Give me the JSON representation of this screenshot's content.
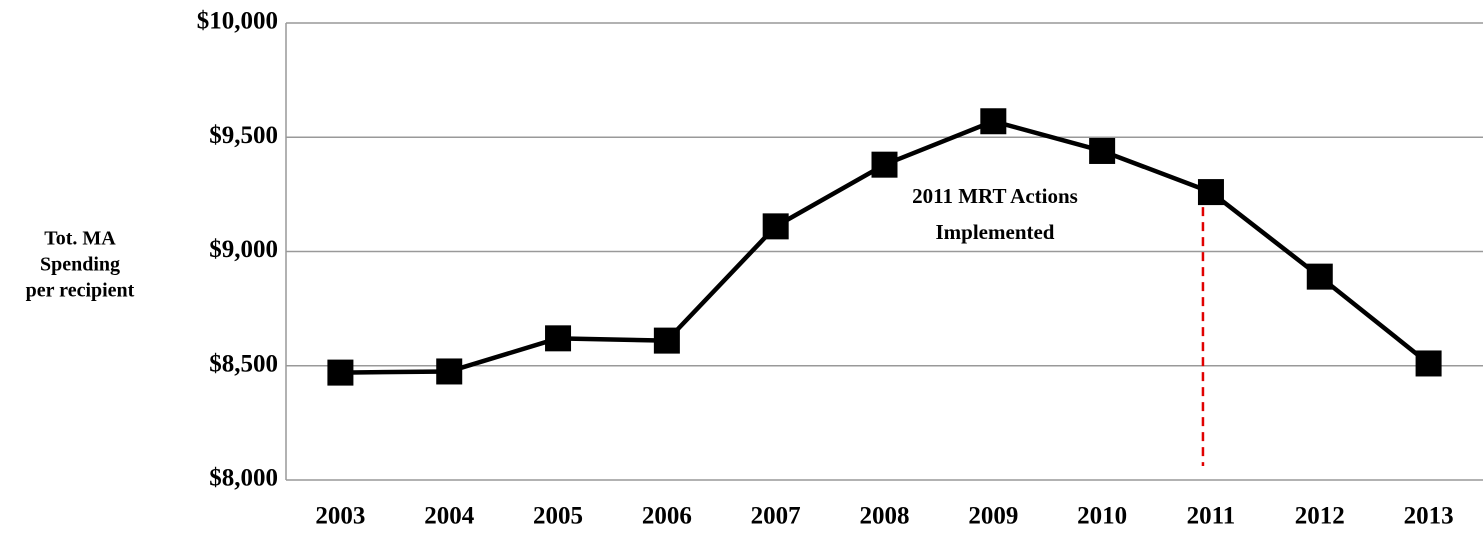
{
  "chart_data": {
    "type": "line",
    "y_axis_label": [
      "Tot. MA",
      "Spending",
      "per recipient"
    ],
    "categories": [
      "2003",
      "2004",
      "2005",
      "2006",
      "2007",
      "2008",
      "2009",
      "2010",
      "2011",
      "2012",
      "2013"
    ],
    "series": [
      {
        "color": "#000000",
        "values": [
          8470,
          8475,
          8620,
          8610,
          9110,
          9380,
          9570,
          9440,
          9260,
          8890,
          8510
        ]
      }
    ],
    "ylim": [
      8000,
      10000
    ],
    "yticks": [
      {
        "value": 8000,
        "label": "$8,000"
      },
      {
        "value": 8500,
        "label": "$8,500"
      },
      {
        "value": 9000,
        "label": "$9,000"
      },
      {
        "value": 9500,
        "label": "$9,500"
      },
      {
        "value": 10000,
        "label": "$10,000"
      }
    ],
    "grid": true,
    "annotation": {
      "text": [
        "2011 MRT Actions",
        "Implemented"
      ],
      "x": "2011",
      "color": "#e00000"
    }
  }
}
